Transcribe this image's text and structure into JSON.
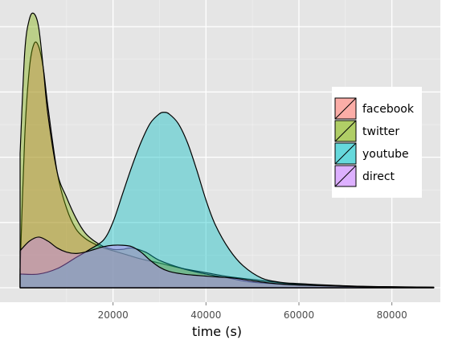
{
  "chart_data": {
    "type": "area",
    "xlabel": "time (s)",
    "ylabel": "",
    "xlim": [
      -2500,
      90000
    ],
    "x_ticks": [
      20000,
      40000,
      60000,
      80000
    ],
    "x_tick_labels": [
      "20000",
      "40000",
      "60000",
      "80000"
    ],
    "grid": true,
    "legend_position": "right",
    "series": [
      {
        "name": "facebook",
        "color": "#F8766D",
        "x": [
          0,
          1000,
          2000,
          3000,
          4000,
          5000,
          6000,
          8000,
          10000,
          12000,
          14000,
          16000,
          18000,
          20000,
          23000,
          26000,
          30000,
          35000,
          40000,
          45000,
          50000,
          55000,
          60000,
          70000,
          80000,
          89000
        ],
        "y": [
          0.065,
          0.55,
          0.8,
          0.89,
          0.88,
          0.8,
          0.66,
          0.42,
          0.29,
          0.215,
          0.18,
          0.16,
          0.145,
          0.135,
          0.12,
          0.105,
          0.09,
          0.07,
          0.055,
          0.04,
          0.03,
          0.02,
          0.012,
          0.006,
          0.003,
          0.001
        ]
      },
      {
        "name": "twitter",
        "color": "#7CAE00",
        "x": [
          0,
          1000,
          2000,
          3000,
          4000,
          5000,
          6000,
          8000,
          10000,
          12000,
          14000,
          16000,
          18000,
          20000,
          22000,
          24000,
          27000,
          30000,
          35000,
          40000,
          45000,
          50000,
          60000,
          70000,
          80000,
          89000
        ],
        "y": [
          0.49,
          0.86,
          0.98,
          1.0,
          0.95,
          0.8,
          0.63,
          0.42,
          0.33,
          0.255,
          0.2,
          0.17,
          0.15,
          0.14,
          0.14,
          0.145,
          0.13,
          0.1,
          0.07,
          0.05,
          0.035,
          0.02,
          0.01,
          0.005,
          0.002,
          0.001
        ]
      },
      {
        "name": "youtube",
        "color": "#00BFC4",
        "x": [
          0,
          4000,
          8000,
          12000,
          15000,
          18000,
          20000,
          22000,
          24000,
          26000,
          28000,
          30000,
          31000,
          32000,
          34000,
          36000,
          38000,
          40000,
          42000,
          45000,
          48000,
          52000,
          56000,
          60000,
          66000,
          72000,
          78000,
          84000,
          89000
        ],
        "y": [
          0.05,
          0.05,
          0.07,
          0.11,
          0.14,
          0.175,
          0.24,
          0.34,
          0.44,
          0.53,
          0.6,
          0.635,
          0.64,
          0.635,
          0.6,
          0.53,
          0.43,
          0.32,
          0.23,
          0.14,
          0.08,
          0.035,
          0.02,
          0.015,
          0.01,
          0.006,
          0.004,
          0.003,
          0.002
        ]
      },
      {
        "name": "direct",
        "color": "#C77CFF",
        "x": [
          0,
          2000,
          4000,
          6000,
          8000,
          10000,
          12000,
          14000,
          16000,
          18000,
          20000,
          22000,
          24000,
          26000,
          28000,
          30000,
          32000,
          35000,
          38000,
          42000,
          46000,
          50000,
          55000,
          60000,
          70000,
          80000,
          89000
        ],
        "y": [
          0.135,
          0.17,
          0.185,
          0.17,
          0.145,
          0.13,
          0.125,
          0.13,
          0.14,
          0.15,
          0.155,
          0.155,
          0.15,
          0.13,
          0.1,
          0.075,
          0.06,
          0.05,
          0.045,
          0.04,
          0.035,
          0.025,
          0.015,
          0.01,
          0.005,
          0.003,
          0.002
        ]
      }
    ]
  }
}
